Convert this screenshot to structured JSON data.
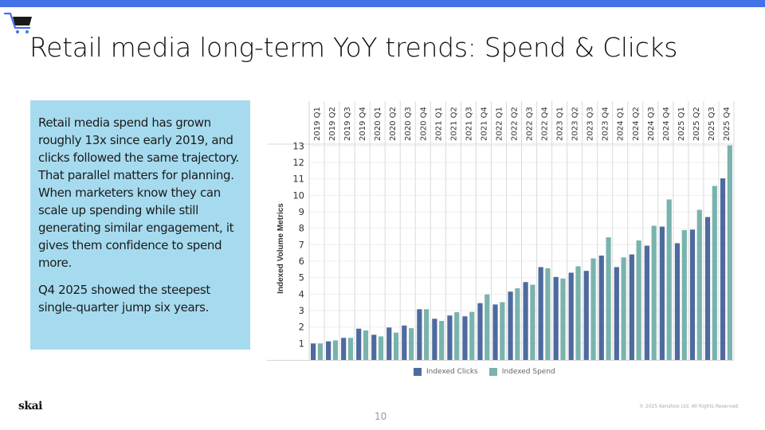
{
  "slide": {
    "title": "Retail media long-term YoY trends: Spend & Clicks",
    "page_number": "10",
    "logo": "skai",
    "copyright": "© 2025 Kenshoo Ltd. All Rights Reserved.",
    "icon": "shopping-cart-icon",
    "accent_color": "#4472E8",
    "text_box": {
      "background": "#A6DBEF",
      "paragraphs": [
        "Retail media spend has grown roughly 13x since early 2019, and clicks followed the same trajectory. That parallel matters for planning. When marketers know they can scale up spending while still generating similar engagement, it gives them confidence to spend more.",
        "Q4 2025 showed the steepest single-quarter jump six years."
      ]
    }
  },
  "chart_data": {
    "type": "bar",
    "title": "",
    "xlabel": "",
    "ylabel": "Indexed Volume Metrics",
    "ylim": [
      0,
      13
    ],
    "yticks": [
      1,
      2,
      3,
      4,
      5,
      6,
      7,
      8,
      9,
      10,
      11,
      12,
      13
    ],
    "grid": true,
    "legend_position": "bottom",
    "categories": [
      "2019 Q1",
      "2019 Q2",
      "2019 Q3",
      "2019 Q4",
      "2020 Q1",
      "2020 Q2",
      "2020 Q3",
      "2020 Q4",
      "2021 Q1",
      "2021 Q2",
      "2021 Q3",
      "2021 Q4",
      "2022 Q1",
      "2022 Q2",
      "2022 Q3",
      "2022 Q4",
      "2023 Q1",
      "2023 Q2",
      "2023 Q3",
      "2023 Q4",
      "2024 Q1",
      "2024 Q2",
      "2024 Q3",
      "2024 Q4",
      "2025 Q1",
      "2025 Q2",
      "2025 Q3",
      "2025 Q4"
    ],
    "series": [
      {
        "name": "Indexed Clicks",
        "color": "#4E6A9E",
        "values": [
          1.0,
          1.13,
          1.34,
          1.9,
          1.53,
          1.97,
          2.09,
          3.08,
          2.5,
          2.7,
          2.65,
          3.45,
          3.37,
          4.15,
          4.73,
          5.64,
          5.04,
          5.3,
          5.41,
          6.34,
          5.64,
          6.41,
          6.94,
          8.1,
          7.09,
          7.92,
          8.68,
          11.03
        ]
      },
      {
        "name": "Indexed Spend",
        "color": "#7AB3AE",
        "values": [
          1.0,
          1.19,
          1.34,
          1.79,
          1.43,
          1.66,
          1.93,
          3.08,
          2.37,
          2.9,
          2.92,
          3.98,
          3.51,
          4.35,
          4.57,
          5.57,
          4.94,
          5.69,
          6.17,
          7.45,
          6.23,
          7.26,
          8.15,
          9.75,
          7.89,
          9.12,
          10.57,
          13.04
        ]
      }
    ]
  }
}
